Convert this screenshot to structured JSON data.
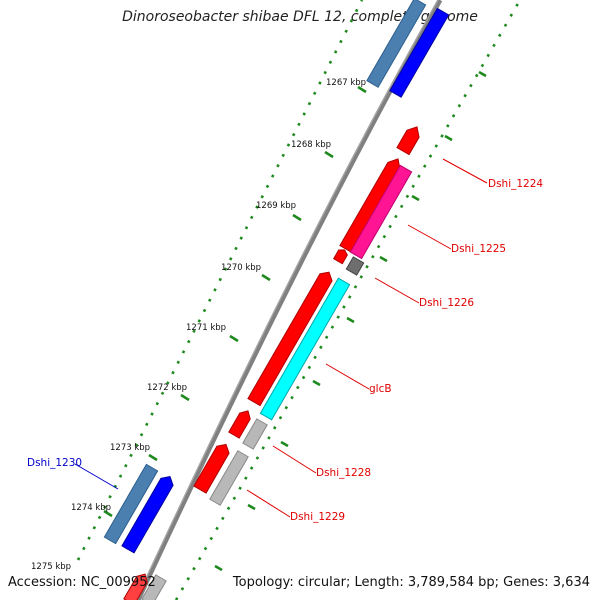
{
  "title": "Dinoroseobacter shibae DFL 12, complete genome",
  "accession_text": "Accession: NC_009952",
  "topology_text": "Topology: circular; Length: 3,789,584 bp; Genes: 3,634",
  "kbp_ticks": [
    "1267 kbp",
    "1268 kbp",
    "1269 kbp",
    "1270 kbp",
    "1271 kbp",
    "1272 kbp",
    "1273 kbp",
    "1274 kbp",
    "1275 kbp"
  ],
  "colors": {
    "backbone": "#808080",
    "dot_track": "#1e8a1e",
    "gene_red": "#ff0000",
    "gene_blue": "#0000ff",
    "gene_steelblue": "#4a7fb0",
    "gene_magenta": "#ff1493",
    "gene_cyan": "#00ffff",
    "gene_gray": "#b8b8b8",
    "gene_darkgray": "#6e6e6e",
    "label_red": "#e00000",
    "label_blue": "#0000cc"
  },
  "gene_labels": [
    {
      "name": "Dshi_1224",
      "color": "red"
    },
    {
      "name": "Dshi_1225",
      "color": "red"
    },
    {
      "name": "Dshi_1226",
      "color": "red"
    },
    {
      "name": "glcB",
      "color": "red"
    },
    {
      "name": "Dshi_1228",
      "color": "red"
    },
    {
      "name": "Dshi_1229",
      "color": "red"
    },
    {
      "name": "Dshi_1230",
      "color": "blue"
    }
  ]
}
